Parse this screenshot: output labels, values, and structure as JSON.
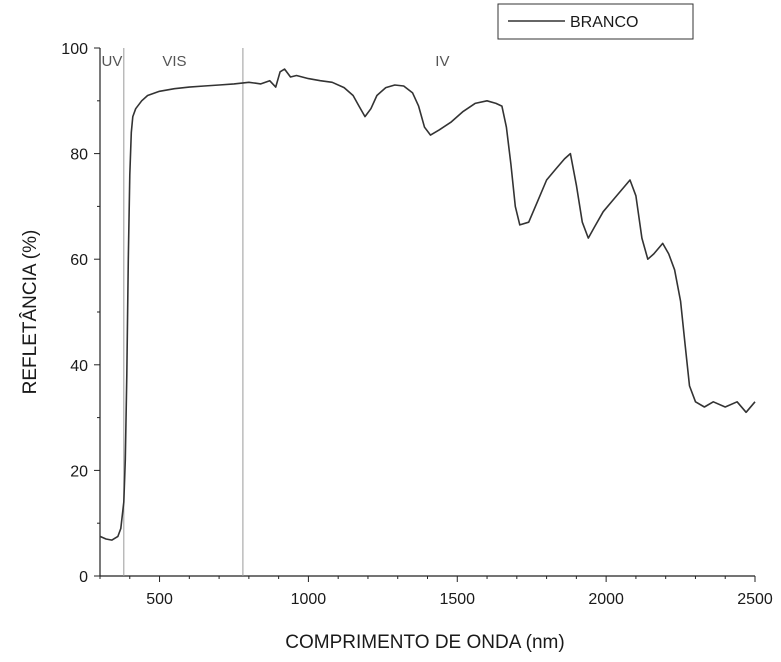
{
  "chart_data": {
    "type": "line",
    "title": "",
    "xlabel": "COMPRIMENTO DE ONDA (nm)",
    "ylabel": "REFLETÂNCIA (%)",
    "xlim": [
      300,
      2500
    ],
    "ylim": [
      0,
      100
    ],
    "xticks": [
      500,
      1000,
      1500,
      2000,
      2500
    ],
    "yticks": [
      0,
      20,
      40,
      60,
      80,
      100
    ],
    "grid": false,
    "legend": {
      "position": "top-right",
      "entries": [
        "BRANCO"
      ]
    },
    "regions": [
      {
        "label": "UV",
        "x": 340
      },
      {
        "label": "VIS",
        "x": 550
      },
      {
        "label": "IV",
        "x": 1450
      }
    ],
    "dividers": [
      380,
      780
    ],
    "line_color": "#333333",
    "series": [
      {
        "name": "BRANCO",
        "points": [
          [
            300,
            7.5
          ],
          [
            320,
            7.0
          ],
          [
            340,
            6.8
          ],
          [
            360,
            7.5
          ],
          [
            370,
            9.0
          ],
          [
            380,
            14.0
          ],
          [
            385,
            22.0
          ],
          [
            390,
            38.0
          ],
          [
            395,
            60.0
          ],
          [
            400,
            76.0
          ],
          [
            405,
            84.0
          ],
          [
            410,
            87.0
          ],
          [
            420,
            88.5
          ],
          [
            440,
            90.0
          ],
          [
            460,
            91.0
          ],
          [
            500,
            91.8
          ],
          [
            550,
            92.3
          ],
          [
            600,
            92.6
          ],
          [
            650,
            92.8
          ],
          [
            700,
            93.0
          ],
          [
            750,
            93.2
          ],
          [
            800,
            93.5
          ],
          [
            840,
            93.2
          ],
          [
            870,
            93.8
          ],
          [
            890,
            92.6
          ],
          [
            905,
            95.5
          ],
          [
            920,
            96.0
          ],
          [
            940,
            94.5
          ],
          [
            960,
            94.8
          ],
          [
            1000,
            94.2
          ],
          [
            1040,
            93.8
          ],
          [
            1080,
            93.5
          ],
          [
            1120,
            92.5
          ],
          [
            1150,
            91.0
          ],
          [
            1170,
            89.0
          ],
          [
            1190,
            87.0
          ],
          [
            1210,
            88.5
          ],
          [
            1230,
            91.0
          ],
          [
            1260,
            92.5
          ],
          [
            1290,
            93.0
          ],
          [
            1320,
            92.8
          ],
          [
            1350,
            91.5
          ],
          [
            1370,
            89.0
          ],
          [
            1390,
            85.0
          ],
          [
            1410,
            83.5
          ],
          [
            1440,
            84.5
          ],
          [
            1480,
            86.0
          ],
          [
            1520,
            88.0
          ],
          [
            1560,
            89.5
          ],
          [
            1600,
            90.0
          ],
          [
            1630,
            89.5
          ],
          [
            1650,
            89.0
          ],
          [
            1665,
            85.0
          ],
          [
            1680,
            78.0
          ],
          [
            1695,
            70.0
          ],
          [
            1710,
            66.5
          ],
          [
            1740,
            67.0
          ],
          [
            1770,
            71.0
          ],
          [
            1800,
            75.0
          ],
          [
            1830,
            77.0
          ],
          [
            1860,
            79.0
          ],
          [
            1880,
            80.0
          ],
          [
            1900,
            74.0
          ],
          [
            1920,
            67.0
          ],
          [
            1940,
            64.0
          ],
          [
            1960,
            66.0
          ],
          [
            1990,
            69.0
          ],
          [
            2020,
            71.0
          ],
          [
            2050,
            73.0
          ],
          [
            2080,
            75.0
          ],
          [
            2100,
            72.0
          ],
          [
            2120,
            64.0
          ],
          [
            2140,
            60.0
          ],
          [
            2160,
            61.0
          ],
          [
            2190,
            63.0
          ],
          [
            2210,
            61.0
          ],
          [
            2230,
            58.0
          ],
          [
            2250,
            52.0
          ],
          [
            2265,
            44.0
          ],
          [
            2280,
            36.0
          ],
          [
            2300,
            33.0
          ],
          [
            2330,
            32.0
          ],
          [
            2360,
            33.0
          ],
          [
            2400,
            32.0
          ],
          [
            2440,
            33.0
          ],
          [
            2470,
            31.0
          ],
          [
            2500,
            33.0
          ]
        ]
      }
    ]
  }
}
